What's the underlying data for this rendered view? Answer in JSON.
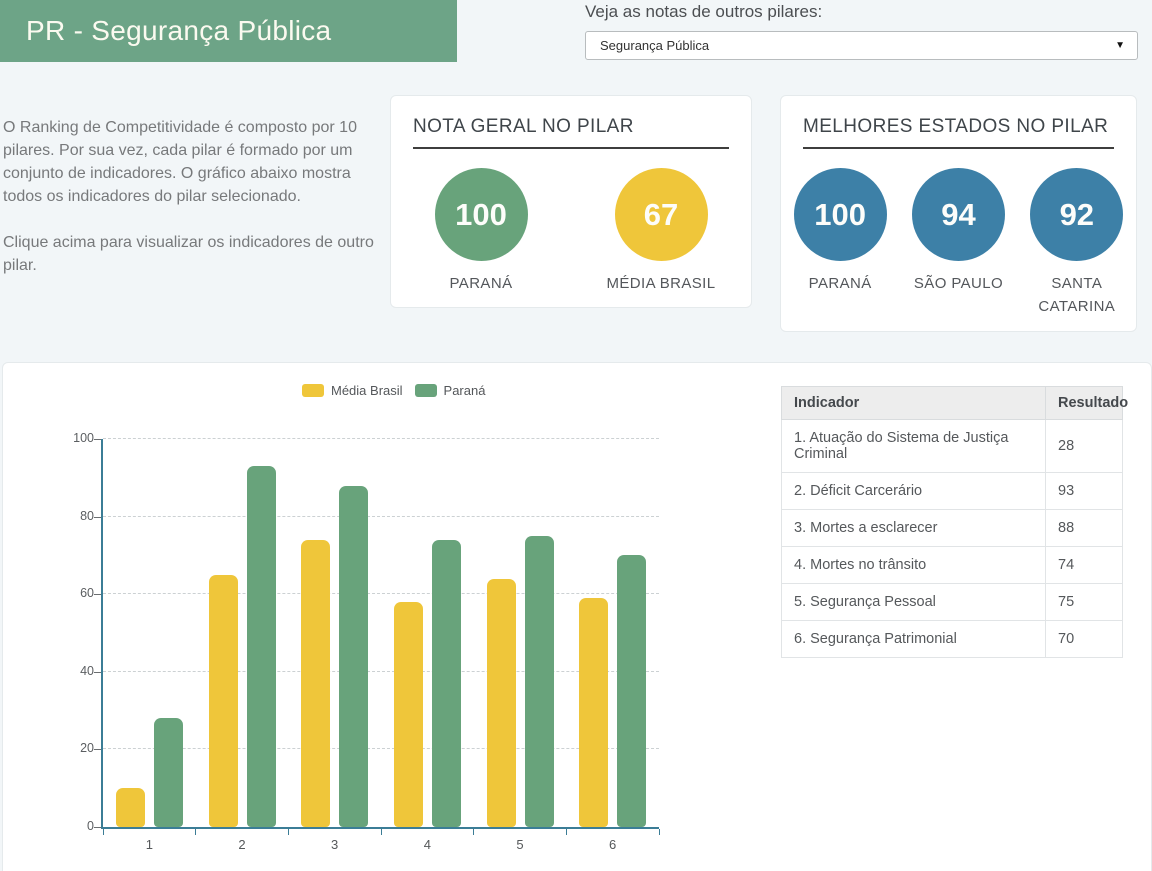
{
  "page": {
    "title": "PR - Segurança Pública",
    "intro_paragraph_1": "O Ranking de Competitividade é composto por 10 pilares. Por sua vez, cada pilar é formado por um conjunto de indicadores. O gráfico abaixo mostra todos os indicadores do pilar selecionado.",
    "intro_paragraph_2": "Clique acima para visualizar os indicadores de outro pilar."
  },
  "colors": {
    "banner_green": "#6da487",
    "green": "#68a37b",
    "yellow": "#efc63a",
    "blue": "#3d80a7",
    "axis": "#3b7d96",
    "page_background": "#f2f6f8"
  },
  "pillar_selector": {
    "label": "Veja as notas de outros pilares:",
    "selected_option": "Segurança Pública",
    "dropdown_arrow_icon": "▼"
  },
  "nota_geral_card": {
    "title": "NOTA GERAL NO PILAR",
    "scores": [
      {
        "value": "100",
        "label": "PARANÁ",
        "color": "#68a37b"
      },
      {
        "value": "67",
        "label": "MÉDIA BRASIL",
        "color": "#efc63a"
      }
    ]
  },
  "melhores_estados_card": {
    "title": "MELHORES ESTADOS NO PILAR",
    "scores": [
      {
        "value": "100",
        "label": "PARANÁ",
        "color": "#3d80a7"
      },
      {
        "value": "94",
        "label": "SÃO PAULO",
        "color": "#3d80a7"
      },
      {
        "value": "92",
        "label": "SANTA CATARINA",
        "color": "#3d80a7"
      }
    ]
  },
  "chart_data": {
    "type": "bar",
    "categories": [
      "1",
      "2",
      "3",
      "4",
      "5",
      "6"
    ],
    "series": [
      {
        "name": "Média Brasil",
        "color": "#efc63a",
        "values": [
          10,
          65,
          74,
          58,
          64,
          59
        ]
      },
      {
        "name": "Paraná",
        "color": "#68a37b",
        "values": [
          28,
          93,
          88,
          74,
          75,
          70
        ]
      }
    ],
    "ylim": [
      0,
      100
    ],
    "yticks": [
      0,
      20,
      40,
      60,
      80,
      100
    ],
    "grid": "dashed-horizontal",
    "legend_position": "top",
    "axis_color": "#3b7d96"
  },
  "indicators_table": {
    "columns": [
      "Indicador",
      "Resultado"
    ],
    "rows": [
      {
        "indicador": "1. Atuação do Sistema de Justiça Criminal",
        "resultado": "28"
      },
      {
        "indicador": "2. Déficit Carcerário",
        "resultado": "93"
      },
      {
        "indicador": "3. Mortes a esclarecer",
        "resultado": "88"
      },
      {
        "indicador": "4. Mortes no trânsito",
        "resultado": "74"
      },
      {
        "indicador": "5. Segurança Pessoal",
        "resultado": "75"
      },
      {
        "indicador": "6. Segurança Patrimonial",
        "resultado": "70"
      }
    ]
  }
}
